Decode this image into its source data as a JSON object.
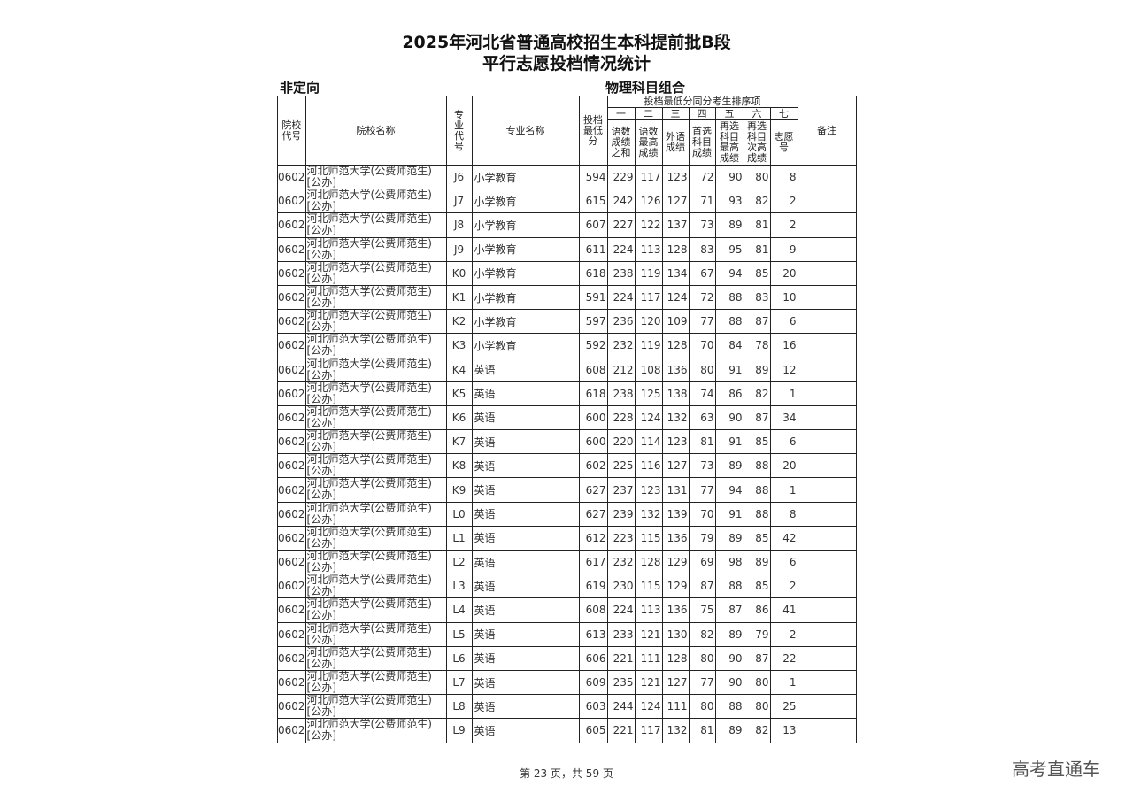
{
  "title_line1": "2025年河北省普通高校招生本科提前批B段",
  "title_line2": "平行志愿投档情况统计",
  "left_label": "非定向",
  "right_label": "物理科目组合",
  "headers": {
    "school_code": "院校代号",
    "school_name": "院校名称",
    "major_code": "专业代号",
    "major_name": "专业名称",
    "min_score": "投档最低分",
    "tiebreak_group": "投档最低分同分考生排序项",
    "tiebreak_nums": [
      "一",
      "二",
      "三",
      "四",
      "五",
      "六",
      "七"
    ],
    "tiebreak_items": [
      "语数成绩之和",
      "语数最高成绩",
      "外语成绩",
      "首选科目成绩",
      "再选科目最高成绩",
      "再选科目次高成绩",
      "志愿号"
    ],
    "remark": "备注"
  },
  "rows": [
    [
      "0602",
      "河北师范大学(公费师范生)[公办]",
      "J6",
      "小学教育",
      "594",
      "229",
      "117",
      "123",
      "72",
      "90",
      "80",
      "8"
    ],
    [
      "0602",
      "河北师范大学(公费师范生)[公办]",
      "J7",
      "小学教育",
      "615",
      "242",
      "126",
      "127",
      "71",
      "93",
      "82",
      "2"
    ],
    [
      "0602",
      "河北师范大学(公费师范生)[公办]",
      "J8",
      "小学教育",
      "607",
      "227",
      "122",
      "137",
      "73",
      "89",
      "81",
      "2"
    ],
    [
      "0602",
      "河北师范大学(公费师范生)[公办]",
      "J9",
      "小学教育",
      "611",
      "224",
      "113",
      "128",
      "83",
      "95",
      "81",
      "9"
    ],
    [
      "0602",
      "河北师范大学(公费师范生)[公办]",
      "K0",
      "小学教育",
      "618",
      "238",
      "119",
      "134",
      "67",
      "94",
      "85",
      "20"
    ],
    [
      "0602",
      "河北师范大学(公费师范生)[公办]",
      "K1",
      "小学教育",
      "591",
      "224",
      "117",
      "124",
      "72",
      "88",
      "83",
      "10"
    ],
    [
      "0602",
      "河北师范大学(公费师范生)[公办]",
      "K2",
      "小学教育",
      "597",
      "236",
      "120",
      "109",
      "77",
      "88",
      "87",
      "6"
    ],
    [
      "0602",
      "河北师范大学(公费师范生)[公办]",
      "K3",
      "小学教育",
      "592",
      "232",
      "119",
      "128",
      "70",
      "84",
      "78",
      "16"
    ],
    [
      "0602",
      "河北师范大学(公费师范生)[公办]",
      "K4",
      "英语",
      "608",
      "212",
      "108",
      "136",
      "80",
      "91",
      "89",
      "12"
    ],
    [
      "0602",
      "河北师范大学(公费师范生)[公办]",
      "K5",
      "英语",
      "618",
      "238",
      "125",
      "138",
      "74",
      "86",
      "82",
      "1"
    ],
    [
      "0602",
      "河北师范大学(公费师范生)[公办]",
      "K6",
      "英语",
      "600",
      "228",
      "124",
      "132",
      "63",
      "90",
      "87",
      "34"
    ],
    [
      "0602",
      "河北师范大学(公费师范生)[公办]",
      "K7",
      "英语",
      "600",
      "220",
      "114",
      "123",
      "81",
      "91",
      "85",
      "6"
    ],
    [
      "0602",
      "河北师范大学(公费师范生)[公办]",
      "K8",
      "英语",
      "602",
      "225",
      "116",
      "127",
      "73",
      "89",
      "88",
      "20"
    ],
    [
      "0602",
      "河北师范大学(公费师范生)[公办]",
      "K9",
      "英语",
      "627",
      "237",
      "123",
      "131",
      "77",
      "94",
      "88",
      "1"
    ],
    [
      "0602",
      "河北师范大学(公费师范生)[公办]",
      "L0",
      "英语",
      "627",
      "239",
      "132",
      "139",
      "70",
      "91",
      "88",
      "8"
    ],
    [
      "0602",
      "河北师范大学(公费师范生)[公办]",
      "L1",
      "英语",
      "612",
      "223",
      "115",
      "136",
      "79",
      "89",
      "85",
      "42"
    ],
    [
      "0602",
      "河北师范大学(公费师范生)[公办]",
      "L2",
      "英语",
      "617",
      "232",
      "128",
      "129",
      "69",
      "98",
      "89",
      "6"
    ],
    [
      "0602",
      "河北师范大学(公费师范生)[公办]",
      "L3",
      "英语",
      "619",
      "230",
      "115",
      "129",
      "87",
      "88",
      "85",
      "2"
    ],
    [
      "0602",
      "河北师范大学(公费师范生)[公办]",
      "L4",
      "英语",
      "608",
      "224",
      "113",
      "136",
      "75",
      "87",
      "86",
      "41"
    ],
    [
      "0602",
      "河北师范大学(公费师范生)[公办]",
      "L5",
      "英语",
      "613",
      "233",
      "121",
      "130",
      "82",
      "89",
      "79",
      "2"
    ],
    [
      "0602",
      "河北师范大学(公费师范生)[公办]",
      "L6",
      "英语",
      "606",
      "221",
      "111",
      "128",
      "80",
      "90",
      "87",
      "22"
    ],
    [
      "0602",
      "河北师范大学(公费师范生)[公办]",
      "L7",
      "英语",
      "609",
      "235",
      "121",
      "127",
      "77",
      "90",
      "80",
      "1"
    ],
    [
      "0602",
      "河北师范大学(公费师范生)[公办]",
      "L8",
      "英语",
      "603",
      "244",
      "124",
      "111",
      "80",
      "88",
      "80",
      "25"
    ],
    [
      "0602",
      "河北师范大学(公费师范生)[公办]",
      "L9",
      "英语",
      "605",
      "221",
      "117",
      "132",
      "81",
      "89",
      "82",
      "13"
    ]
  ],
  "footer": "第 23 页，共 59 页",
  "watermark": "高考直通车"
}
